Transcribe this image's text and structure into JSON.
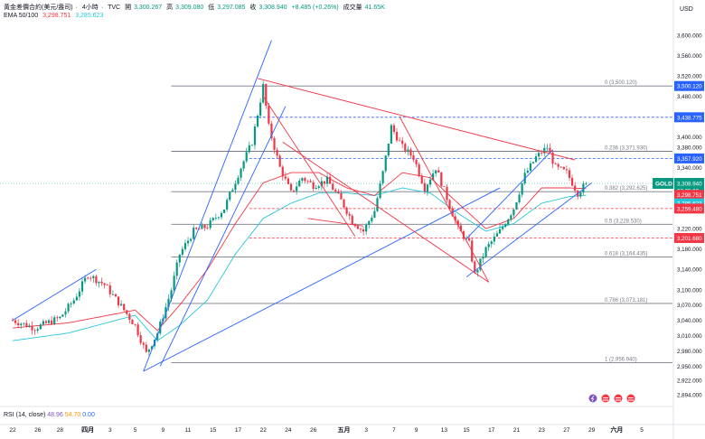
{
  "header": {
    "symbol": "黃金差價合約(美元/盎司)",
    "interval": "4小時",
    "source": "TVC",
    "open_label": "開",
    "open": "3,300.267",
    "high_label": "高",
    "high": "3,309.080",
    "low_label": "低",
    "low": "3,297.085",
    "close_label": "收",
    "close": "3,308.940",
    "change": "+8.485 (+0.26%)",
    "volume_label": "成交量",
    "volume": "41.65K",
    "ema_label": "EMA 50/100",
    "ema50_value": "3,298.751",
    "ema100_value": "3,285.623"
  },
  "rsi": {
    "label": "RSI (14, close)",
    "v1": "48.96",
    "v2": "54.70",
    "v3": "0.00"
  },
  "currency": "USD",
  "colors": {
    "up": "#089981",
    "down": "#f23645",
    "ema50": "#f23645",
    "ema100": "#26c6da",
    "channel_blue": "#2962ff",
    "channel_red": "#f23645",
    "fib_line": "#787b86"
  },
  "price_labels": [
    {
      "name": "price-label-3500",
      "text": "3,500.120",
      "value": 3500.12,
      "bg": "#2962ff"
    },
    {
      "name": "price-label-3438",
      "text": "3,438.775",
      "value": 3438.775,
      "bg": "#2962ff"
    },
    {
      "name": "price-label-3357",
      "text": "3,357.920",
      "value": 3357.92,
      "bg": "#2962ff"
    },
    {
      "name": "price-label-gold",
      "text": "3,308.940",
      "sub": "02:35:00",
      "tag": "GOLD",
      "value": 3308.94,
      "bg": "#089981"
    },
    {
      "name": "price-label-ema50",
      "text": "3,298.751",
      "value": 3298.751,
      "bg": "#f23645"
    },
    {
      "name": "price-label-ema100",
      "text": "3,285.623",
      "value": 3285.623,
      "bg": "#26c6da"
    },
    {
      "name": "price-label-3259",
      "text": "3,259.480",
      "value": 3259.48,
      "bg": "#f23645"
    },
    {
      "name": "price-label-3201",
      "text": "3,201.680",
      "value": 3201.68,
      "bg": "#f23645"
    }
  ],
  "chart_data": {
    "type": "candlestick",
    "title": "黃金差價合約(美元/盎司) · 4小時 · TVC",
    "ylabel": "USD",
    "ylim": [
      2885,
      3630
    ],
    "y_ticks": [
      "3,600.000",
      "3,560.000",
      "3,520.000",
      "3,480.000",
      "3,440.000",
      "3,400.000",
      "3,380.000",
      "3,340.000",
      "3,300.000",
      "3,260.000",
      "3,220.000",
      "3,180.000",
      "3,140.000",
      "3,100.000",
      "3,070.000",
      "3,040.000",
      "3,010.000",
      "2,980.000",
      "2,950.000",
      "2,922.000",
      "2,894.000"
    ],
    "y_tick_values": [
      3600,
      3560,
      3520,
      3480,
      3440,
      3400,
      3380,
      3340,
      3300,
      3260,
      3220,
      3180,
      3140,
      3100,
      3070,
      3040,
      3010,
      2980,
      2950,
      2922,
      2894
    ],
    "x_ticks": [
      "22",
      "26",
      "28",
      "四月",
      "3",
      "5",
      "9",
      "11",
      "15",
      "17",
      "22",
      "24",
      "26",
      "五月",
      "3",
      "7",
      "9",
      "13",
      "15",
      "17",
      "21",
      "23",
      "27",
      "29",
      "六月",
      "5"
    ],
    "x_tick_index": [
      0,
      9,
      17,
      27,
      35,
      44,
      54,
      63,
      72,
      81,
      90,
      99,
      108,
      119,
      127,
      137,
      145,
      155,
      163,
      172,
      181,
      190,
      199,
      208,
      217,
      226
    ],
    "fib_levels": [
      {
        "ratio": "0",
        "label": "0 (3,500.120)",
        "value": 3500.12
      },
      {
        "ratio": "0.236",
        "label": "0.236 (3,371.930)",
        "value": 3371.93
      },
      {
        "ratio": "0.382",
        "label": "0.382 (3,292.625)",
        "value": 3292.625
      },
      {
        "ratio": "0.5",
        "label": "0.5 (3,228.530)",
        "value": 3228.53
      },
      {
        "ratio": "0.618",
        "label": "0.618 (3,164.435)",
        "value": 3164.435
      },
      {
        "ratio": "0.786",
        "label": "0.786 (3,073.181)",
        "value": 3073.181
      },
      {
        "ratio": "1",
        "label": "1 (2,956.940)",
        "value": 2956.94
      }
    ],
    "dashed_levels": [
      {
        "value": 3438.775,
        "color": "#2962ff"
      },
      {
        "value": 3357.92,
        "color": "#2962ff"
      },
      {
        "value": 3259.48,
        "color": "#f23645"
      },
      {
        "value": 3201.68,
        "color": "#f23645"
      }
    ],
    "anchors": {
      "i": [
        0,
        8,
        17,
        22,
        27,
        33,
        38,
        44,
        48,
        52,
        57,
        60,
        65,
        70,
        76,
        82,
        86,
        90,
        92,
        96,
        100,
        104,
        108,
        113,
        118,
        122,
        126,
        130,
        133,
        136,
        140,
        144,
        148,
        152,
        156,
        160,
        164,
        166,
        170,
        175,
        180,
        184,
        188,
        192,
        195,
        199,
        203,
        206
      ],
      "p": [
        3040,
        3025,
        3045,
        3080,
        3130,
        3110,
        3075,
        3030,
        2975,
        3015,
        3100,
        3170,
        3215,
        3225,
        3260,
        3340,
        3390,
        3500,
        3420,
        3340,
        3290,
        3320,
        3305,
        3315,
        3275,
        3235,
        3215,
        3255,
        3330,
        3420,
        3380,
        3360,
        3300,
        3340,
        3280,
        3220,
        3190,
        3130,
        3180,
        3215,
        3260,
        3325,
        3360,
        3380,
        3340,
        3330,
        3290,
        3309
      ]
    },
    "ema50_anchors": {
      "i": [
        0,
        20,
        44,
        52,
        60,
        70,
        80,
        90,
        100,
        110,
        120,
        130,
        140,
        150,
        160,
        170,
        180,
        190,
        200,
        206
      ],
      "p": [
        3025,
        3035,
        3060,
        3020,
        3070,
        3140,
        3230,
        3310,
        3330,
        3330,
        3300,
        3285,
        3330,
        3320,
        3270,
        3220,
        3240,
        3300,
        3300,
        3298.751
      ]
    },
    "ema100_anchors": {
      "i": [
        0,
        20,
        44,
        52,
        60,
        70,
        80,
        90,
        100,
        110,
        120,
        130,
        140,
        150,
        160,
        170,
        180,
        190,
        200,
        206
      ],
      "p": [
        3000,
        3015,
        3050,
        3000,
        3030,
        3080,
        3170,
        3240,
        3270,
        3290,
        3290,
        3285,
        3300,
        3290,
        3250,
        3215,
        3230,
        3270,
        3283,
        3285.623
      ]
    },
    "channels": [
      {
        "color": "#2962ff",
        "from": [
          0,
          3040
        ],
        "to": [
          30,
          3140
        ]
      },
      {
        "color": "#2962ff",
        "from": [
          47,
          2940
        ],
        "to": [
          93,
          3590
        ]
      },
      {
        "color": "#2962ff",
        "from": [
          53,
          2950
        ],
        "to": [
          98,
          3460
        ]
      },
      {
        "color": "#2962ff",
        "from": [
          47,
          2940
        ],
        "to": [
          175,
          3300
        ]
      },
      {
        "color": "#2962ff",
        "from": [
          163,
          3125
        ],
        "to": [
          208,
          3310
        ]
      },
      {
        "color": "#2962ff",
        "from": [
          163,
          3200
        ],
        "to": [
          194,
          3375
        ]
      },
      {
        "color": "#f23645",
        "from": [
          88,
          3515
        ],
        "to": [
          202,
          3355
        ]
      },
      {
        "color": "#f23645",
        "from": [
          90,
          3480
        ],
        "to": [
          123,
          3205
        ]
      },
      {
        "color": "#f23645",
        "from": [
          106,
          3240
        ],
        "to": [
          126,
          3225
        ]
      },
      {
        "color": "#f23645",
        "from": [
          139,
          3440
        ],
        "to": [
          171,
          3115
        ]
      },
      {
        "color": "#f23645",
        "from": [
          97,
          3390
        ],
        "to": [
          171,
          3115
        ]
      }
    ],
    "event_icons": 4,
    "last_price": 3308.94
  }
}
